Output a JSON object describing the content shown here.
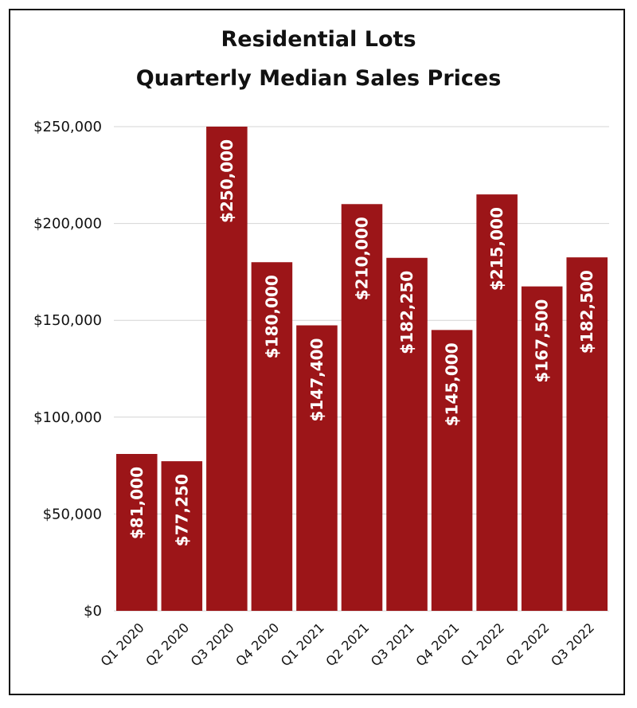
{
  "chart_data": {
    "type": "bar",
    "title": "Residential Lots",
    "subtitle": "Quarterly Median Sales Prices",
    "categories": [
      "Q1 2020",
      "Q2 2020",
      "Q3 2020",
      "Q4 2020",
      "Q1 2021",
      "Q2 2021",
      "Q3 2021",
      "Q4 2021",
      "Q1 2022",
      "Q2 2022",
      "Q3 2022"
    ],
    "values": [
      81000,
      77250,
      250000,
      180000,
      147400,
      210000,
      182250,
      145000,
      215000,
      167500,
      182500
    ],
    "data_labels": [
      "$81,000",
      "$77,250",
      "$250,000",
      "$180,000",
      "$147,400",
      "$210,000",
      "$182,250",
      "$145,000",
      "$215,000",
      "$167,500",
      "$182,500"
    ],
    "y_ticks": [
      0,
      50000,
      100000,
      150000,
      200000,
      250000
    ],
    "y_tick_labels": [
      "$0",
      "$50,000",
      "$100,000",
      "$150,000",
      "$200,000",
      "$250,000"
    ],
    "ylim": [
      0,
      250000
    ],
    "xlabel": "",
    "ylabel": "",
    "grid": true,
    "legend": "none",
    "bar_color": "#9c1518",
    "label_color": "#ffffff"
  }
}
